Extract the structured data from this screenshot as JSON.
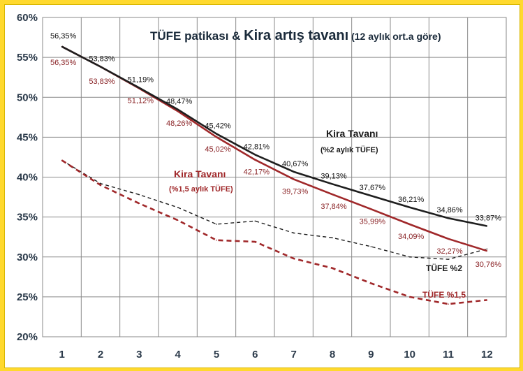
{
  "chart_data": {
    "type": "line",
    "title": {
      "part1": "TÜFE patikası & ",
      "part2": "Kira artış tavanı",
      "part3": " (12 aylık ort.a göre)"
    },
    "xlabel": "",
    "ylabel": "",
    "categories": [
      "1",
      "2",
      "3",
      "4",
      "5",
      "6",
      "7",
      "8",
      "9",
      "10",
      "11",
      "12"
    ],
    "ylim": [
      20,
      60
    ],
    "yticks": [
      20,
      25,
      30,
      35,
      40,
      45,
      50,
      55,
      60
    ],
    "y_tick_labels": [
      "20%",
      "25%",
      "30%",
      "35%",
      "40%",
      "45%",
      "50%",
      "55%",
      "60%"
    ],
    "grid": true,
    "series": [
      {
        "key": "kira2",
        "name": "Kira Tavanı (%2 aylık TÜFE)",
        "color": "#1e1e1e",
        "style": "solid",
        "values": [
          56.35,
          53.83,
          51.19,
          48.47,
          45.42,
          42.81,
          40.67,
          39.13,
          37.67,
          36.21,
          34.86,
          33.87
        ],
        "labels": [
          "56,35%",
          "53,83%",
          "51,19%",
          "48,47%",
          "45,42%",
          "42,81%",
          "40,67%",
          "39,13%",
          "37,67%",
          "36,21%",
          "34,86%",
          "33,87%"
        ]
      },
      {
        "key": "kira15",
        "name": "Kira Tavanı (%1,5 aylık TÜFE)",
        "color": "#a0282a",
        "style": "solid",
        "values": [
          56.35,
          53.83,
          51.12,
          48.26,
          45.02,
          42.17,
          39.73,
          37.84,
          35.99,
          34.09,
          32.27,
          30.76
        ],
        "labels": [
          "56,35%",
          "53,83%",
          "51,12%",
          "48,26%",
          "45,02%",
          "42,17%",
          "39,73%",
          "37,84%",
          "35,99%",
          "34,09%",
          "32,27%",
          "30,76%"
        ]
      },
      {
        "key": "tufe2",
        "name": "TÜFE %2",
        "color": "#1e1e1e",
        "style": "dashed",
        "values": [
          42.1,
          39.2,
          37.8,
          36.2,
          34.1,
          34.5,
          33.0,
          32.4,
          31.3,
          30.0,
          29.7,
          31.0
        ]
      },
      {
        "key": "tufe15",
        "name": "TÜFE %1,5",
        "color": "#a0282a",
        "style": "dashed",
        "values": [
          42.1,
          39.0,
          36.7,
          34.6,
          32.1,
          31.9,
          29.8,
          28.6,
          26.7,
          25.0,
          24.1,
          24.6
        ]
      }
    ],
    "annotations": {
      "kira2_title": "Kira Tavanı",
      "kira2_sub": "(%2 aylık TÜFE)",
      "kira15_title": "Kira Tavanı",
      "kira15_sub": "(%1,5 aylık TÜFE)",
      "tufe2": "TÜFE %2",
      "tufe15": "TÜFE %1,5"
    }
  }
}
